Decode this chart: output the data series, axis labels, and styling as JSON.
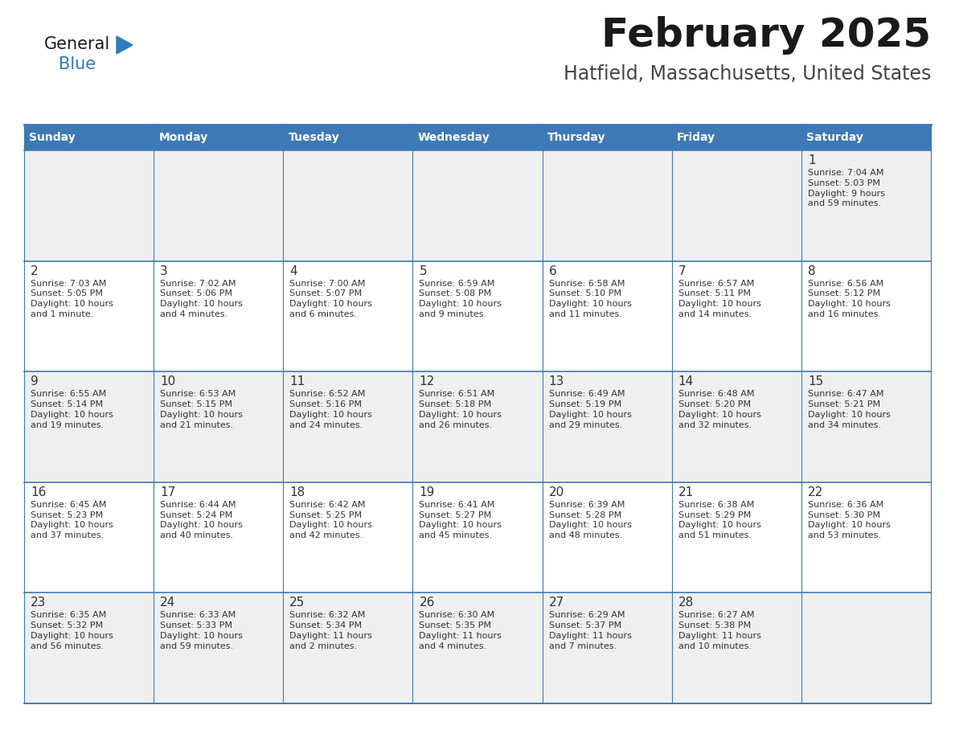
{
  "title": "February 2025",
  "subtitle": "Hatfield, Massachusetts, United States",
  "days_of_week": [
    "Sunday",
    "Monday",
    "Tuesday",
    "Wednesday",
    "Thursday",
    "Friday",
    "Saturday"
  ],
  "header_bg": "#3d7ab5",
  "header_text": "#ffffff",
  "cell_bg_light": "#efefef",
  "cell_bg_white": "#ffffff",
  "border_color": "#3d7ab5",
  "text_color": "#333333",
  "title_color": "#1a1a1a",
  "subtitle_color": "#444444",
  "logo_general_color": "#1a1a1a",
  "logo_blue_color": "#2b7bbf",
  "weeks": [
    [
      {
        "day": null,
        "sunrise": null,
        "sunset": null,
        "daylight": null
      },
      {
        "day": null,
        "sunrise": null,
        "sunset": null,
        "daylight": null
      },
      {
        "day": null,
        "sunrise": null,
        "sunset": null,
        "daylight": null
      },
      {
        "day": null,
        "sunrise": null,
        "sunset": null,
        "daylight": null
      },
      {
        "day": null,
        "sunrise": null,
        "sunset": null,
        "daylight": null
      },
      {
        "day": null,
        "sunrise": null,
        "sunset": null,
        "daylight": null
      },
      {
        "day": 1,
        "sunrise": "7:04 AM",
        "sunset": "5:03 PM",
        "daylight": "9 hours\nand 59 minutes."
      }
    ],
    [
      {
        "day": 2,
        "sunrise": "7:03 AM",
        "sunset": "5:05 PM",
        "daylight": "10 hours\nand 1 minute."
      },
      {
        "day": 3,
        "sunrise": "7:02 AM",
        "sunset": "5:06 PM",
        "daylight": "10 hours\nand 4 minutes."
      },
      {
        "day": 4,
        "sunrise": "7:00 AM",
        "sunset": "5:07 PM",
        "daylight": "10 hours\nand 6 minutes."
      },
      {
        "day": 5,
        "sunrise": "6:59 AM",
        "sunset": "5:08 PM",
        "daylight": "10 hours\nand 9 minutes."
      },
      {
        "day": 6,
        "sunrise": "6:58 AM",
        "sunset": "5:10 PM",
        "daylight": "10 hours\nand 11 minutes."
      },
      {
        "day": 7,
        "sunrise": "6:57 AM",
        "sunset": "5:11 PM",
        "daylight": "10 hours\nand 14 minutes."
      },
      {
        "day": 8,
        "sunrise": "6:56 AM",
        "sunset": "5:12 PM",
        "daylight": "10 hours\nand 16 minutes."
      }
    ],
    [
      {
        "day": 9,
        "sunrise": "6:55 AM",
        "sunset": "5:14 PM",
        "daylight": "10 hours\nand 19 minutes."
      },
      {
        "day": 10,
        "sunrise": "6:53 AM",
        "sunset": "5:15 PM",
        "daylight": "10 hours\nand 21 minutes."
      },
      {
        "day": 11,
        "sunrise": "6:52 AM",
        "sunset": "5:16 PM",
        "daylight": "10 hours\nand 24 minutes."
      },
      {
        "day": 12,
        "sunrise": "6:51 AM",
        "sunset": "5:18 PM",
        "daylight": "10 hours\nand 26 minutes."
      },
      {
        "day": 13,
        "sunrise": "6:49 AM",
        "sunset": "5:19 PM",
        "daylight": "10 hours\nand 29 minutes."
      },
      {
        "day": 14,
        "sunrise": "6:48 AM",
        "sunset": "5:20 PM",
        "daylight": "10 hours\nand 32 minutes."
      },
      {
        "day": 15,
        "sunrise": "6:47 AM",
        "sunset": "5:21 PM",
        "daylight": "10 hours\nand 34 minutes."
      }
    ],
    [
      {
        "day": 16,
        "sunrise": "6:45 AM",
        "sunset": "5:23 PM",
        "daylight": "10 hours\nand 37 minutes."
      },
      {
        "day": 17,
        "sunrise": "6:44 AM",
        "sunset": "5:24 PM",
        "daylight": "10 hours\nand 40 minutes."
      },
      {
        "day": 18,
        "sunrise": "6:42 AM",
        "sunset": "5:25 PM",
        "daylight": "10 hours\nand 42 minutes."
      },
      {
        "day": 19,
        "sunrise": "6:41 AM",
        "sunset": "5:27 PM",
        "daylight": "10 hours\nand 45 minutes."
      },
      {
        "day": 20,
        "sunrise": "6:39 AM",
        "sunset": "5:28 PM",
        "daylight": "10 hours\nand 48 minutes."
      },
      {
        "day": 21,
        "sunrise": "6:38 AM",
        "sunset": "5:29 PM",
        "daylight": "10 hours\nand 51 minutes."
      },
      {
        "day": 22,
        "sunrise": "6:36 AM",
        "sunset": "5:30 PM",
        "daylight": "10 hours\nand 53 minutes."
      }
    ],
    [
      {
        "day": 23,
        "sunrise": "6:35 AM",
        "sunset": "5:32 PM",
        "daylight": "10 hours\nand 56 minutes."
      },
      {
        "day": 24,
        "sunrise": "6:33 AM",
        "sunset": "5:33 PM",
        "daylight": "10 hours\nand 59 minutes."
      },
      {
        "day": 25,
        "sunrise": "6:32 AM",
        "sunset": "5:34 PM",
        "daylight": "11 hours\nand 2 minutes."
      },
      {
        "day": 26,
        "sunrise": "6:30 AM",
        "sunset": "5:35 PM",
        "daylight": "11 hours\nand 4 minutes."
      },
      {
        "day": 27,
        "sunrise": "6:29 AM",
        "sunset": "5:37 PM",
        "daylight": "11 hours\nand 7 minutes."
      },
      {
        "day": 28,
        "sunrise": "6:27 AM",
        "sunset": "5:38 PM",
        "daylight": "11 hours\nand 10 minutes."
      },
      {
        "day": null,
        "sunrise": null,
        "sunset": null,
        "daylight": null
      }
    ]
  ]
}
